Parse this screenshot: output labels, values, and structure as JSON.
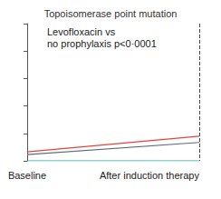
{
  "chart_data": {
    "type": "line",
    "title": "Topoisomerase point mutation",
    "annotation": "Levofloxacin vs\nno prophylaxis p<0·0001",
    "categories": [
      "Baseline",
      "After induction therapy"
    ],
    "series": [
      {
        "color": "#e8413c",
        "values": [
          0.33,
          0.9
        ]
      },
      {
        "color": "#5b6b7b",
        "values": [
          0.23,
          0.67
        ]
      },
      {
        "color": "#2aa89a",
        "values": [
          0,
          0
        ]
      }
    ],
    "ylim": [
      0,
      5
    ],
    "yticks": [
      0,
      1,
      2,
      3,
      4,
      5
    ],
    "tick_labels": "x",
    "grid": false
  }
}
